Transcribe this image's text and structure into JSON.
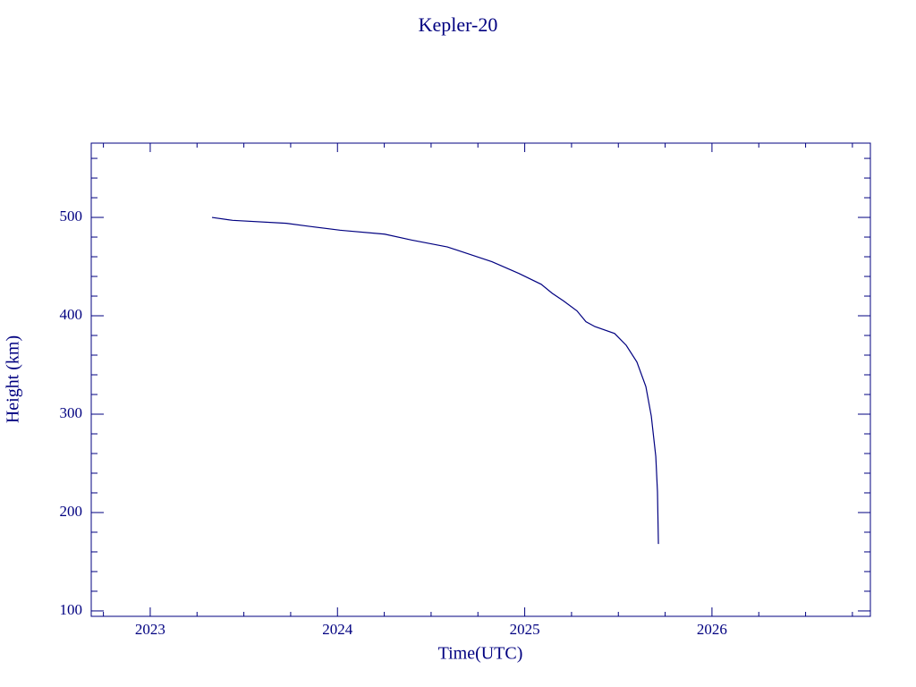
{
  "chart_data": {
    "type": "line",
    "title": "Kepler-20",
    "x_label": "Time(UTC)",
    "y_label": "Height (km)",
    "color": "#000080",
    "xlim": [
      2022.685,
      2026.846
    ],
    "ylim": [
      94.5,
      575.5
    ],
    "xticks": [
      2023,
      2024,
      2025,
      2026
    ],
    "yticks": [
      100,
      200,
      300,
      400,
      500
    ],
    "xminorticks": [
      2022.75,
      2023.25,
      2023.5,
      2023.75,
      2024.25,
      2024.5,
      2024.75,
      2025.25,
      2025.5,
      2025.75,
      2026.25,
      2026.5,
      2026.75
    ],
    "yminorticks": [
      120,
      140,
      160,
      180,
      220,
      240,
      260,
      280,
      320,
      340,
      360,
      380,
      420,
      440,
      460,
      480,
      520,
      540,
      560
    ],
    "x": [
      2023.33,
      2023.44,
      2023.727,
      2023.846,
      2024.013,
      2024.252,
      2024.395,
      2024.587,
      2024.825,
      2024.969,
      2025.088,
      2025.146,
      2025.208,
      2025.279,
      2025.327,
      2025.375,
      2025.48,
      2025.542,
      2025.599,
      2025.647,
      2025.676,
      2025.7,
      2025.709,
      2025.714
    ],
    "values": [
      500,
      497,
      494,
      491,
      487,
      483,
      477,
      470,
      455,
      443,
      432,
      423,
      415,
      405,
      394,
      389,
      382,
      370,
      353,
      328,
      298,
      257,
      221,
      168
    ]
  }
}
